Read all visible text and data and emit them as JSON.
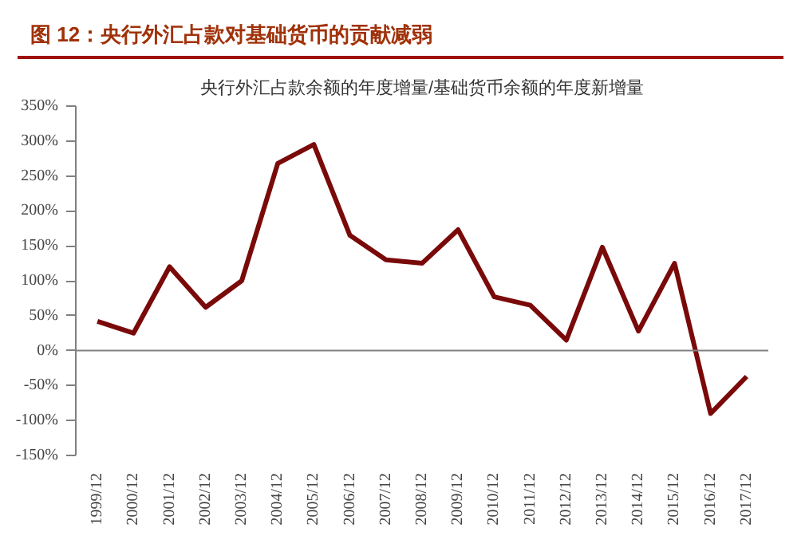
{
  "chart_data": {
    "type": "line",
    "title": "图 12：央行外汇占款对基础货币的贡献减弱",
    "subtitle": "央行外汇占款余额的年度增量/基础货币余额的年度新增量",
    "categories": [
      "1999/12",
      "2000/12",
      "2001/12",
      "2002/12",
      "2003/12",
      "2004/12",
      "2005/12",
      "2006/12",
      "2007/12",
      "2008/12",
      "2009/12",
      "2010/12",
      "2011/12",
      "2012/12",
      "2013/12",
      "2014/12",
      "2015/12",
      "2016/12",
      "2017/12"
    ],
    "series": [
      {
        "color": "#7a0a0a",
        "values": [
          42,
          25,
          120,
          62,
          100,
          268,
          295,
          165,
          130,
          125,
          173,
          77,
          65,
          15,
          148,
          28,
          125,
          -90,
          -37
        ]
      }
    ],
    "ylim": [
      -150,
      350
    ],
    "yticks": [
      {
        "value": -150,
        "label": "-150%"
      },
      {
        "value": -100,
        "label": "-100%"
      },
      {
        "value": -50,
        "label": "-50%"
      },
      {
        "value": 0,
        "label": "0%"
      },
      {
        "value": 50,
        "label": "50%"
      },
      {
        "value": 100,
        "label": "100%"
      },
      {
        "value": 150,
        "label": "150%"
      },
      {
        "value": 200,
        "label": "200%"
      },
      {
        "value": 250,
        "label": "250%"
      },
      {
        "value": 300,
        "label": "300%"
      },
      {
        "value": 350,
        "label": "350%"
      }
    ],
    "ref_lines": [
      {
        "axis": "y",
        "value": 0,
        "color": "#808080"
      }
    ],
    "grid": false,
    "marker": "none",
    "line_style": "solid"
  }
}
